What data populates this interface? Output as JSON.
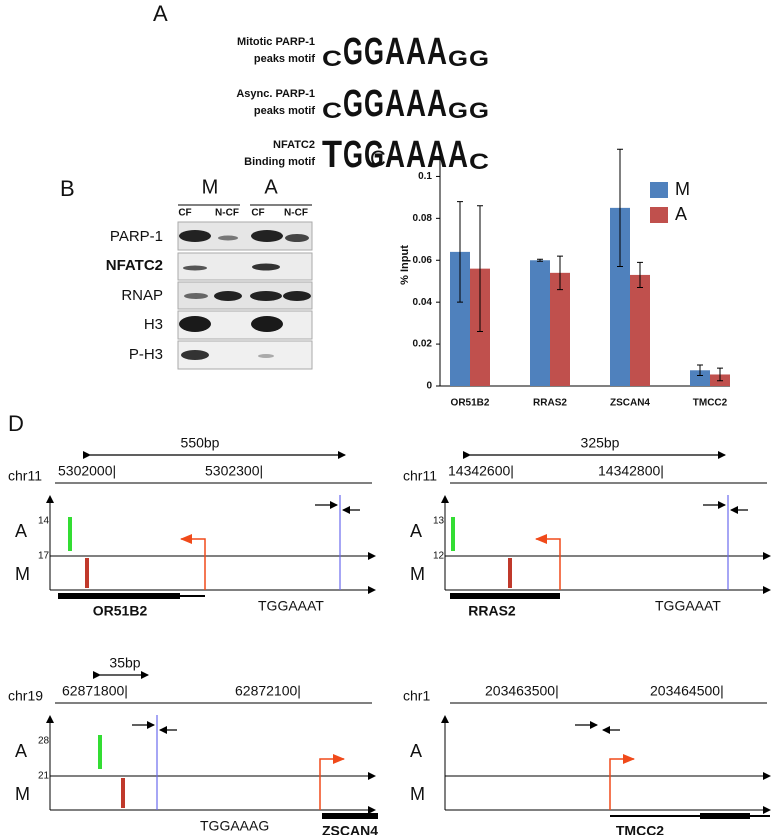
{
  "panel_a": {
    "label": "A",
    "motifs": [
      {
        "label_lines": [
          "Mitotic PARP-1",
          "peaks motif"
        ],
        "logo": [
          "C",
          "G",
          "G",
          "A",
          "A",
          "A",
          "G",
          "G"
        ]
      },
      {
        "label_lines": [
          "Async. PARP-1",
          "peaks motif"
        ],
        "logo": [
          "C",
          "G",
          "G",
          "A",
          "A",
          "A",
          "G",
          "G"
        ]
      },
      {
        "label_lines": [
          "NFATC2",
          "Binding motif"
        ],
        "logo": [
          "T",
          "G",
          "G",
          "A",
          "A",
          "A",
          "A",
          "C"
        ]
      }
    ]
  },
  "panel_b": {
    "label": "B",
    "groups": [
      "M",
      "A"
    ],
    "fractions": [
      "CF",
      "N-CF",
      "CF",
      "N-CF"
    ],
    "rows": [
      "PARP-1",
      "NFATC2",
      "RNAP",
      "H3",
      "P-H3"
    ]
  },
  "chart_data": {
    "type": "bar",
    "panel_label": "C",
    "ylabel": "% Input",
    "categories": [
      "OR51B2",
      "RRAS2",
      "ZSCAN4",
      "TMCC2"
    ],
    "series": [
      {
        "name": "M",
        "color": "#4f81bd",
        "values": [
          0.064,
          0.06,
          0.085,
          0.0075
        ],
        "errors": [
          0.024,
          0.0005,
          0.028,
          0.0025
        ]
      },
      {
        "name": "A",
        "color": "#c0504d",
        "values": [
          0.056,
          0.054,
          0.053,
          0.0055
        ],
        "errors": [
          0.03,
          0.008,
          0.006,
          0.003
        ]
      }
    ],
    "ylim": [
      0,
      0.115
    ],
    "yticks": [
      0,
      0.02,
      0.04,
      0.06,
      0.08,
      0.1
    ],
    "legend": "upper right"
  },
  "panel_d": {
    "label": "D",
    "tracks": [
      {
        "chrom": "chr11",
        "coords": [
          "5302000|",
          "5302300|"
        ],
        "scale": "550bp",
        "a_label": "A",
        "a_scale": "14",
        "m_label": "M",
        "m_scale": "17",
        "gene": "OR51B2",
        "motif": "TGGAAAT"
      },
      {
        "chrom": "chr11",
        "coords": [
          "14342600|",
          "14342800|"
        ],
        "scale": "325bp",
        "a_label": "A",
        "a_scale": "13",
        "m_label": "M",
        "m_scale": "12",
        "gene": "RRAS2",
        "motif": "TGGAAAT"
      },
      {
        "chrom": "chr19",
        "coords": [
          "62871800|",
          "62872100|"
        ],
        "scale": "35bp",
        "a_label": "A",
        "a_scale": "28",
        "m_label": "M",
        "m_scale": "21",
        "gene": "ZSCAN4",
        "motif": "TGGAAAG"
      },
      {
        "chrom": "chr1",
        "coords": [
          "203463500|",
          "203464500|"
        ],
        "a_label": "A",
        "m_label": "M",
        "gene": "TMCC2"
      }
    ]
  }
}
